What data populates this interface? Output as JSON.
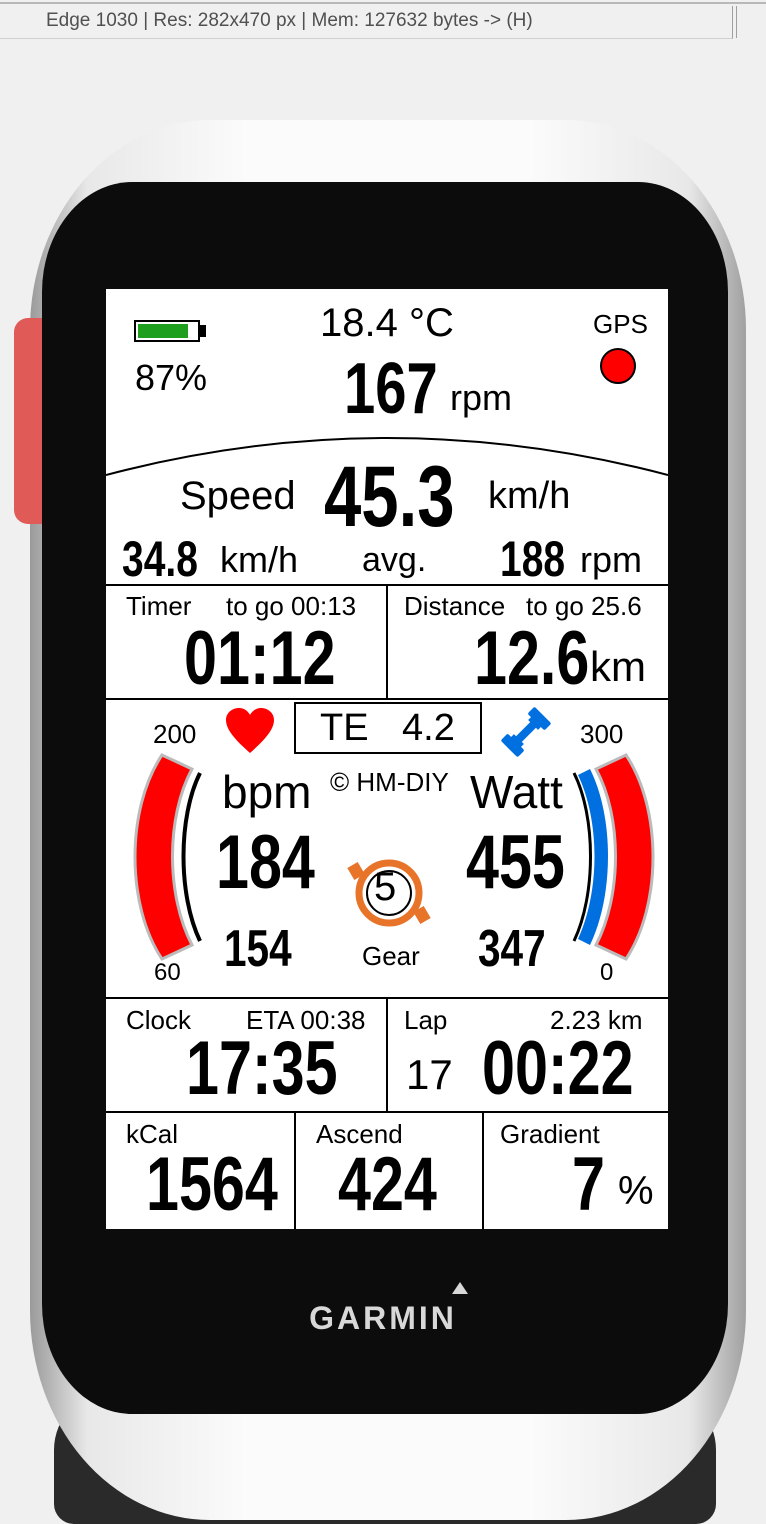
{
  "window": {
    "status": "Edge 1030 | Res: 282x470 px | Mem: 127632 bytes -> (H)"
  },
  "device": {
    "brand": "GARMIN"
  },
  "screen": {
    "header": {
      "battery_percent": "87%",
      "battery_level": 0.87,
      "temperature": "18.4 °C",
      "cadence": "167",
      "cadence_unit": "rpm",
      "gps_label": "GPS",
      "gps_status_color": "#ff0000"
    },
    "speed": {
      "label": "Speed",
      "value": "45.3",
      "unit": "km/h",
      "avg_value": "34.8",
      "avg_unit": "km/h",
      "avg_label": "avg.",
      "avg_cadence": "188",
      "avg_cadence_unit": "rpm"
    },
    "timer": {
      "label": "Timer",
      "to_go": "to go 00:13",
      "value": "01:12"
    },
    "distance": {
      "label": "Distance",
      "to_go": "to go 25.6",
      "value": "12.6",
      "unit": "km"
    },
    "heart": {
      "max": "200",
      "min": "60",
      "unit": "bpm",
      "value": "184",
      "avg": "154",
      "icon": "heart-icon",
      "color": "#ff0000"
    },
    "training_effect": {
      "label": "TE",
      "value": "4.2"
    },
    "copyright": "© HM-DIY",
    "power": {
      "max": "300",
      "min": "0",
      "unit": "Watt",
      "value": "455",
      "avg": "347",
      "icon": "dumbbell-icon",
      "color": "#0070e0"
    },
    "gear": {
      "value": "5",
      "label": "Gear",
      "color": "#e8742a"
    },
    "clock": {
      "label": "Clock",
      "eta": "ETA 00:38",
      "value": "17:35"
    },
    "lap": {
      "label": "Lap",
      "distance": "2.23 km",
      "number": "17",
      "time": "00:22"
    },
    "kcal": {
      "label": "kCal",
      "value": "1564"
    },
    "ascend": {
      "label": "Ascend",
      "value": "424"
    },
    "gradient": {
      "label": "Gradient",
      "value": "7",
      "unit": "%"
    }
  }
}
